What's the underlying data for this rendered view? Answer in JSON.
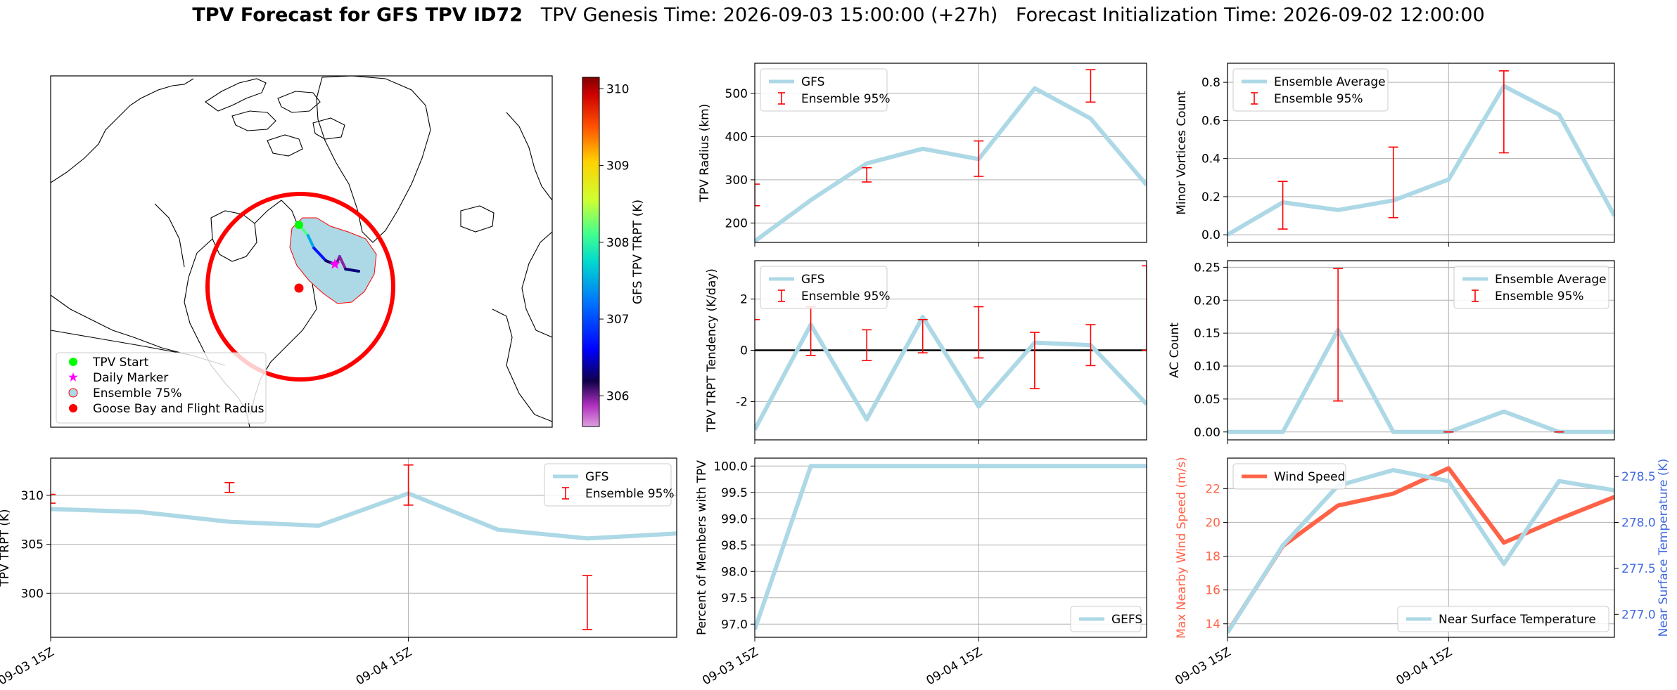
{
  "header": {
    "title_bold": "TPV Forecast for GFS TPV ID72",
    "title_rest": "TPV Genesis Time: 2026-09-03 15:00:00 (+27h)   Forecast Initialization Time: 2026-09-02 12:00:00"
  },
  "colors": {
    "gfs_line": "#add8e6",
    "errorbar": "#ff0000",
    "wind_line": "#ff6347",
    "temp_axis": "#4169e1",
    "start_marker": "#00ff00",
    "daily_marker": "#ff00ff",
    "goose_bay": "#ff0000"
  },
  "map": {
    "legend": [
      "TPV Start",
      "Daily Marker",
      "Ensemble 75%",
      "Goose Bay and Flight Radius"
    ],
    "colorbar_label": "GFS TPV TRPT (K)",
    "colorbar_ticks": [
      306,
      307,
      308,
      309,
      310
    ],
    "colorbar_range": [
      305.6,
      310.15
    ],
    "track": [
      {
        "lon": 0.0,
        "lat": 0.0,
        "trpt": 308.3
      },
      {
        "lon": 0.15,
        "lat": -0.25,
        "trpt": 308.0
      },
      {
        "lon": 0.25,
        "lat": -0.55,
        "trpt": 307.0
      },
      {
        "lon": 0.45,
        "lat": -0.85,
        "trpt": 306.4
      },
      {
        "lon": 0.62,
        "lat": -0.95,
        "trpt": 306.1
      },
      {
        "lon": 0.68,
        "lat": -0.75,
        "trpt": 305.9
      },
      {
        "lon": 0.78,
        "lat": -1.05,
        "trpt": 306.0
      },
      {
        "lon": 1.0,
        "lat": -1.1,
        "trpt": 306.6
      }
    ]
  },
  "time_axis": {
    "tick_labels": [
      "09-03 15Z",
      "09-04 15Z"
    ]
  },
  "chart_data": [
    {
      "id": "trpt",
      "type": "line",
      "ylabel": "TPV TRPT (K)",
      "ylim": [
        295.5,
        313.8
      ],
      "yticks": [
        300,
        305,
        310
      ],
      "legend": [
        "GFS",
        "Ensemble 95%"
      ],
      "legend_position": "top-right",
      "x_hours": [
        0,
        6,
        12,
        18,
        24,
        30,
        36,
        42
      ],
      "series": [
        {
          "name": "GFS",
          "values": [
            308.6,
            308.3,
            307.3,
            306.9,
            310.2,
            306.5,
            305.6,
            306.1
          ]
        }
      ],
      "errorbars": [
        {
          "x_hours": 0,
          "low": 309.2,
          "high": 310.1
        },
        {
          "x_hours": 12,
          "low": 310.3,
          "high": 311.3
        },
        {
          "x_hours": 24,
          "low": 309.0,
          "high": 313.1
        },
        {
          "x_hours": 36,
          "low": 296.3,
          "high": 301.8
        }
      ]
    },
    {
      "id": "radius",
      "type": "line",
      "ylabel": "TPV Radius (km)",
      "ylim": [
        155,
        570
      ],
      "yticks": [
        200,
        300,
        400,
        500
      ],
      "legend": [
        "GFS",
        "Ensemble 95%"
      ],
      "legend_position": "top-left",
      "x_hours": [
        0,
        6,
        12,
        18,
        24,
        30,
        36,
        42
      ],
      "series": [
        {
          "name": "GFS",
          "values": [
            158,
            253,
            338,
            372,
            348,
            512,
            442,
            288
          ]
        }
      ],
      "errorbars": [
        {
          "x_hours": 0,
          "low": 240,
          "high": 290
        },
        {
          "x_hours": 12,
          "low": 295,
          "high": 328
        },
        {
          "x_hours": 24,
          "low": 308,
          "high": 390
        },
        {
          "x_hours": 36,
          "low": 480,
          "high": 555
        }
      ]
    },
    {
      "id": "tendency",
      "type": "line",
      "ylabel": "TPV TRPT Tendency (K/day)",
      "ylim": [
        -3.5,
        3.5
      ],
      "yticks": [
        -2,
        0,
        2
      ],
      "zero_line": true,
      "legend": [
        "GFS",
        "Ensemble 95%"
      ],
      "legend_position": "top-left",
      "x_hours": [
        0,
        6,
        12,
        18,
        24,
        30,
        36,
        42
      ],
      "series": [
        {
          "name": "GFS",
          "values": [
            -3.1,
            1.0,
            -2.7,
            1.3,
            -2.2,
            0.3,
            0.2,
            -2.1
          ]
        }
      ],
      "errorbars": [
        {
          "x_hours": 0,
          "low": 1.2,
          "high": 1.2
        },
        {
          "x_hours": 6,
          "low": -0.2,
          "high": 1.7
        },
        {
          "x_hours": 12,
          "low": -0.4,
          "high": 0.8
        },
        {
          "x_hours": 18,
          "low": -0.1,
          "high": 1.2
        },
        {
          "x_hours": 24,
          "low": -0.3,
          "high": 1.7
        },
        {
          "x_hours": 30,
          "low": -1.5,
          "high": 0.7
        },
        {
          "x_hours": 36,
          "low": -0.6,
          "high": 1.0
        },
        {
          "x_hours": 42,
          "low": 0.0,
          "high": 3.3
        }
      ]
    },
    {
      "id": "percent",
      "type": "line",
      "ylabel": "Percent of Members with TPV",
      "ylim": [
        96.75,
        100.15
      ],
      "yticks": [
        97.0,
        97.5,
        98.0,
        98.5,
        99.0,
        99.5,
        100.0
      ],
      "legend": [
        "GEFS"
      ],
      "legend_position": "bottom-right",
      "x_hours": [
        0,
        6,
        12,
        18,
        24,
        30,
        36,
        42
      ],
      "series": [
        {
          "name": "GEFS",
          "values": [
            96.9,
            100.0,
            100.0,
            100.0,
            100.0,
            100.0,
            100.0,
            100.0
          ]
        }
      ]
    },
    {
      "id": "minor",
      "type": "line",
      "ylabel": "Minor Vortices Count",
      "ylim": [
        -0.04,
        0.9
      ],
      "yticks": [
        0.0,
        0.2,
        0.4,
        0.6,
        0.8
      ],
      "legend": [
        "Ensemble Average",
        "Ensemble 95%"
      ],
      "legend_position": "top-left",
      "x_hours": [
        0,
        6,
        12,
        18,
        24,
        30,
        36,
        42
      ],
      "series": [
        {
          "name": "Ensemble Average",
          "values": [
            0.0,
            0.17,
            0.13,
            0.18,
            0.29,
            0.78,
            0.63,
            0.1
          ]
        }
      ],
      "errorbars": [
        {
          "x_hours": 6,
          "low": 0.03,
          "high": 0.28
        },
        {
          "x_hours": 18,
          "low": 0.09,
          "high": 0.46
        },
        {
          "x_hours": 30,
          "low": 0.43,
          "high": 0.86
        }
      ]
    },
    {
      "id": "ac",
      "type": "line",
      "ylabel": "AC Count",
      "ylim": [
        -0.012,
        0.26
      ],
      "yticks": [
        0.0,
        0.05,
        0.1,
        0.15,
        0.2,
        0.25
      ],
      "legend": [
        "Ensemble Average",
        "Ensemble 95%"
      ],
      "legend_position": "top-right",
      "x_hours": [
        0,
        6,
        12,
        18,
        24,
        30,
        36,
        42
      ],
      "series": [
        {
          "name": "Ensemble Average",
          "values": [
            0.0,
            0.0,
            0.155,
            0.0,
            0.0,
            0.031,
            0.0,
            0.0
          ]
        }
      ],
      "errorbars": [
        {
          "x_hours": 12,
          "low": 0.047,
          "high": 0.248
        },
        {
          "x_hours": 24,
          "low": 0.0,
          "high": 0.0
        },
        {
          "x_hours": 36,
          "low": 0.0,
          "high": 0.0
        }
      ]
    },
    {
      "id": "wind_temp",
      "type": "line",
      "ylabel": "Max Nearby Wind Speed (m/s)",
      "ylabel_right": "Near Surface Temperature (K)",
      "ylim": [
        13.2,
        23.8
      ],
      "yticks": [
        14,
        16,
        18,
        20,
        22
      ],
      "ylim_right": [
        276.75,
        278.7
      ],
      "yticks_right": [
        277.0,
        277.5,
        278.0,
        278.5
      ],
      "legend": [
        "Wind Speed",
        "Near Surface Temperature"
      ],
      "x_hours": [
        0,
        6,
        12,
        18,
        24,
        30,
        36,
        42
      ],
      "series": [
        {
          "name": "Wind Speed",
          "axis": "left",
          "values": [
            13.5,
            18.6,
            21.0,
            21.7,
            23.2,
            18.8,
            20.2,
            21.5
          ]
        },
        {
          "name": "Near Surface Temperature",
          "axis": "right",
          "values": [
            276.8,
            277.75,
            278.4,
            278.57,
            278.45,
            277.55,
            278.45,
            278.35
          ]
        }
      ]
    }
  ]
}
